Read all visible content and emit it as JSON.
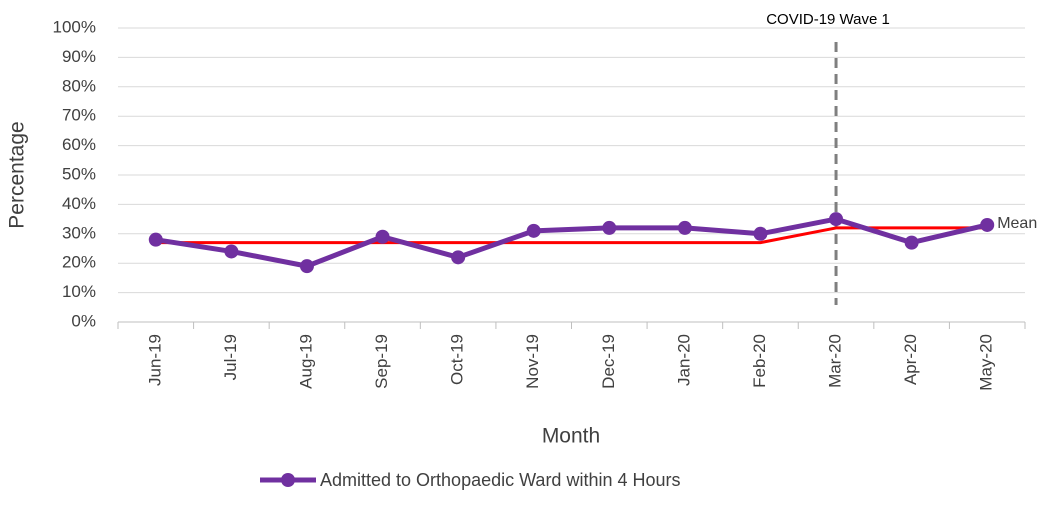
{
  "chart_data": {
    "type": "line",
    "x_label": "Month",
    "y_label": "Percentage",
    "categories": [
      "Jun-19",
      "Jul-19",
      "Aug-19",
      "Sep-19",
      "Oct-19",
      "Nov-19",
      "Dec-19",
      "Jan-20",
      "Feb-20",
      "Mar-20",
      "Apr-20",
      "May-20"
    ],
    "series": [
      {
        "name": "Admitted to Orthopaedic Ward within 4 Hours",
        "color": "#7030a0",
        "values": [
          28,
          24,
          19,
          29,
          22,
          31,
          32,
          32,
          30,
          35,
          27,
          33
        ]
      },
      {
        "name": "Mean",
        "color": "#ff0000",
        "values": [
          27,
          27,
          27,
          27,
          27,
          27,
          27,
          27,
          27,
          32,
          32,
          32
        ]
      }
    ],
    "ylim": [
      0,
      100
    ],
    "yticks": [
      {
        "value": 0,
        "label": "0%"
      },
      {
        "value": 10,
        "label": "10%"
      },
      {
        "value": 20,
        "label": "20%"
      },
      {
        "value": 30,
        "label": "30%"
      },
      {
        "value": 40,
        "label": "40%"
      },
      {
        "value": 50,
        "label": "50%"
      },
      {
        "value": 60,
        "label": "60%"
      },
      {
        "value": 70,
        "label": "70%"
      },
      {
        "value": 80,
        "label": "80%"
      },
      {
        "value": 90,
        "label": "90%"
      },
      {
        "value": 100,
        "label": "100%"
      }
    ],
    "grid": true,
    "annotation": {
      "text": "COVID-19 Wave 1",
      "x": "Mar-20"
    },
    "legend": "bottom"
  }
}
